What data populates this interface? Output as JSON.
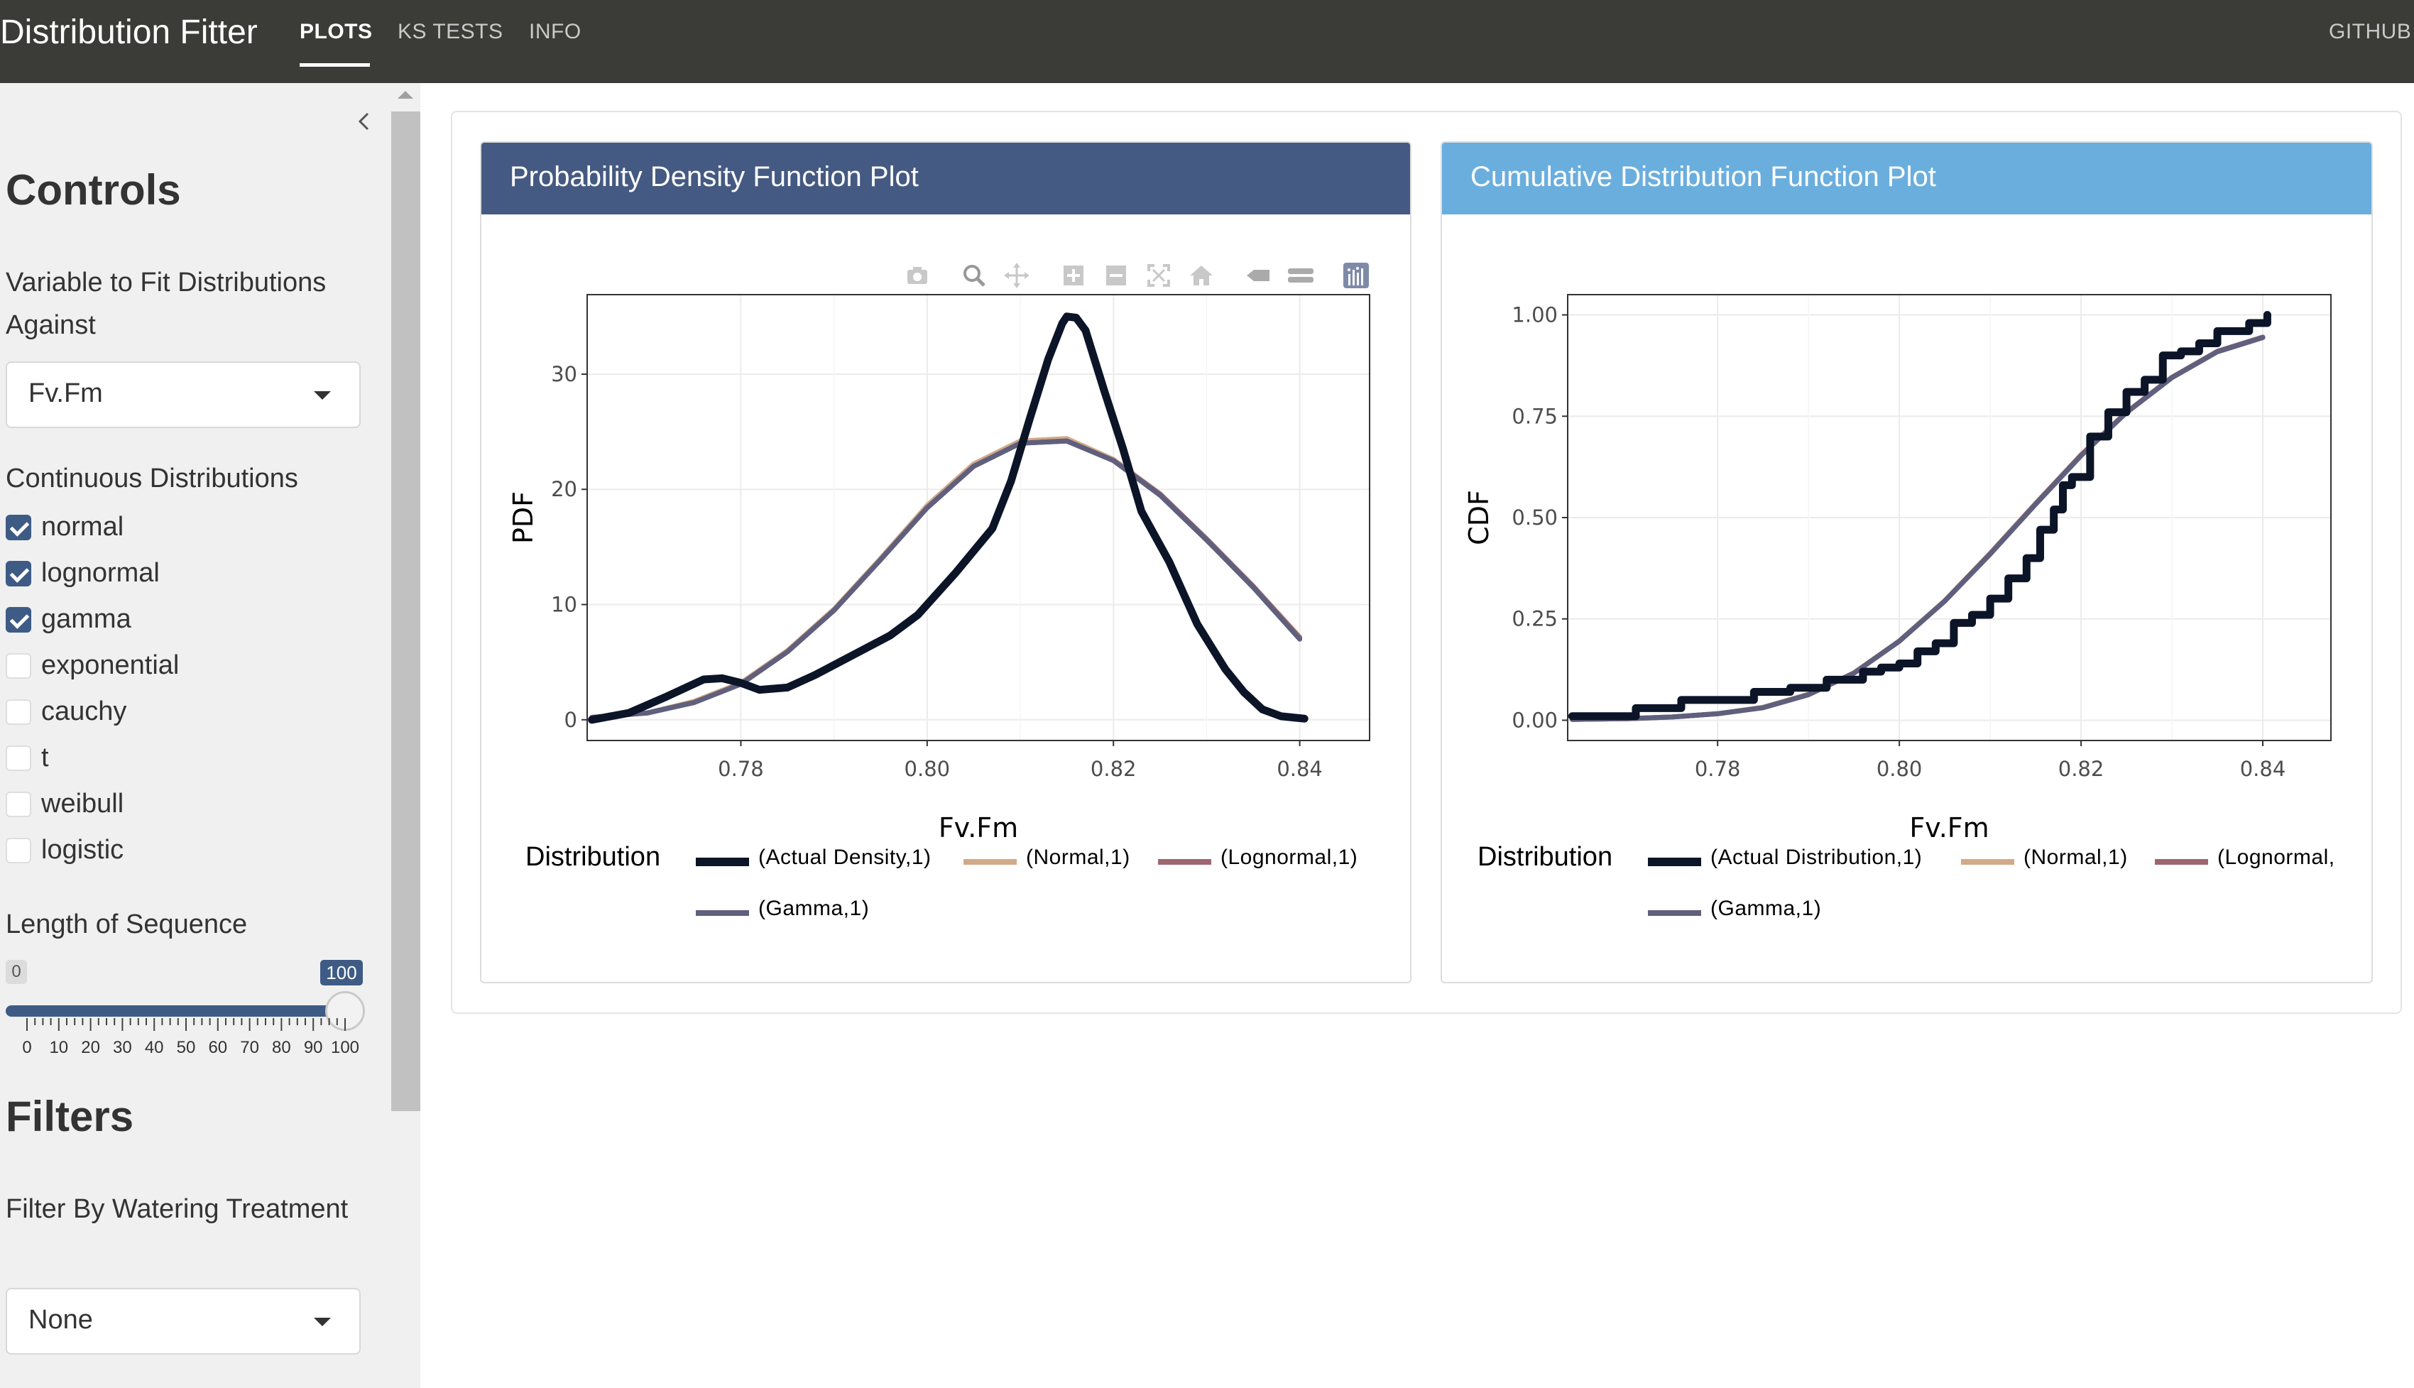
{
  "navbar": {
    "brand": "Distribution Fitter",
    "tabs": [
      {
        "label": "PLOTS"
      },
      {
        "label": "KS TESTS"
      },
      {
        "label": "INFO"
      }
    ],
    "right_link": "GITHUB"
  },
  "sidebar": {
    "controls_heading": "Controls",
    "variable_label": "Variable to Fit Distributions Against",
    "variable_value": "Fv.Fm",
    "distributions_label": "Continuous Distributions",
    "distributions": [
      {
        "label": "normal",
        "checked": true
      },
      {
        "label": "lognormal",
        "checked": true
      },
      {
        "label": "gamma",
        "checked": true
      },
      {
        "label": "exponential",
        "checked": false
      },
      {
        "label": "cauchy",
        "checked": false
      },
      {
        "label": "t",
        "checked": false
      },
      {
        "label": "weibull",
        "checked": false
      },
      {
        "label": "logistic",
        "checked": false
      }
    ],
    "sequence_label": "Length of Sequence",
    "slider": {
      "min_label": "0",
      "max_label": "100",
      "value_fraction": 1.0,
      "tick_labels": [
        "0",
        "10",
        "20",
        "30",
        "40",
        "50",
        "60",
        "70",
        "80",
        "90",
        "100"
      ]
    },
    "filters_heading": "Filters",
    "filter_label": "Filter By Watering Treatment",
    "filter_value": "None"
  },
  "colors": {
    "pdf_header": "#455a82",
    "cdf_header": "#6aaede",
    "actual": "#0c1428",
    "normal": "#d2aa88",
    "lognormal": "#9e6670",
    "gamma": "#5f5f7e"
  },
  "pdf_panel": {
    "title": "Probability Density Function Plot",
    "legend_title": "Distribution",
    "legend": [
      "(Actual Density,1)",
      "(Normal,1)",
      "(Lognormal,1)",
      "(Gamma,1)"
    ],
    "modebar_icons": [
      "camera-icon",
      "zoom-icon",
      "pan-icon",
      "zoom-in-icon",
      "zoom-out-icon",
      "autoscale-icon",
      "reset-axes-icon",
      "hover-closest-icon",
      "hover-compare-icon",
      "plotly-logo-icon"
    ]
  },
  "cdf_panel": {
    "title": "Cumulative Distribution Function Plot",
    "legend_title": "Distribution",
    "legend": [
      "(Actual Distribution,1)",
      "(Normal,1)",
      "(Lognormal,",
      "(Gamma,1)"
    ]
  },
  "chart_data": [
    {
      "type": "line",
      "title": "Probability Density Function Plot",
      "xlabel": "Fv.Fm",
      "ylabel": "PDF",
      "xlim": [
        0.7635,
        0.8475
      ],
      "ylim": [
        -1.8,
        36.9
      ],
      "xticks": [
        0.78,
        0.8,
        0.82,
        0.84
      ],
      "xtick_labels": [
        "0.78",
        "0.80",
        "0.82",
        "0.84"
      ],
      "yticks": [
        0,
        10,
        20,
        30
      ],
      "ytick_labels": [
        "0",
        "10",
        "20",
        "30"
      ],
      "series": [
        {
          "name": "(Actual Density,1)",
          "color_key": "actual",
          "x": [
            0.764,
            0.768,
            0.772,
            0.776,
            0.778,
            0.78,
            0.782,
            0.785,
            0.788,
            0.792,
            0.796,
            0.799,
            0.803,
            0.807,
            0.809,
            0.811,
            0.813,
            0.8145,
            0.815,
            0.816,
            0.817,
            0.819,
            0.821,
            0.823,
            0.826,
            0.829,
            0.832,
            0.834,
            0.836,
            0.838,
            0.8405
          ],
          "y": [
            0,
            0.6,
            2.0,
            3.5,
            3.6,
            3.2,
            2.6,
            2.8,
            3.9,
            5.6,
            7.3,
            9.1,
            12.7,
            16.6,
            20.7,
            26.1,
            31.3,
            34.4,
            35.0,
            34.9,
            33.8,
            28.6,
            23.6,
            18.1,
            13.7,
            8.3,
            4.4,
            2.4,
            0.9,
            0.3,
            0.1
          ]
        },
        {
          "name": "(Normal,1)",
          "color_key": "normal",
          "x": [
            0.764,
            0.77,
            0.775,
            0.78,
            0.785,
            0.79,
            0.795,
            0.8,
            0.805,
            0.81,
            0.815,
            0.82,
            0.825,
            0.83,
            0.835,
            0.84
          ],
          "y": [
            0.2,
            0.6,
            1.6,
            3.2,
            6.0,
            9.6,
            14.0,
            18.6,
            22.2,
            24.2,
            24.4,
            22.6,
            19.6,
            15.6,
            11.6,
            7.2
          ]
        },
        {
          "name": "(Lognormal,1)",
          "color_key": "lognormal",
          "x": [
            0.764,
            0.77,
            0.775,
            0.78,
            0.785,
            0.79,
            0.795,
            0.8,
            0.805,
            0.81,
            0.815,
            0.82,
            0.825,
            0.83,
            0.835,
            0.84
          ],
          "y": [
            0.2,
            0.6,
            1.5,
            3.1,
            5.9,
            9.5,
            13.9,
            18.4,
            22.0,
            24.0,
            24.2,
            22.5,
            19.6,
            15.7,
            11.6,
            7.1
          ]
        },
        {
          "name": "(Gamma,1)",
          "color_key": "gamma",
          "x": [
            0.764,
            0.77,
            0.775,
            0.78,
            0.785,
            0.79,
            0.795,
            0.8,
            0.805,
            0.81,
            0.815,
            0.82,
            0.825,
            0.83,
            0.835,
            0.84
          ],
          "y": [
            0.2,
            0.6,
            1.5,
            3.1,
            5.9,
            9.5,
            13.9,
            18.4,
            22.0,
            24.0,
            24.2,
            22.5,
            19.5,
            15.6,
            11.5,
            7.0
          ]
        }
      ]
    },
    {
      "type": "line",
      "title": "Cumulative Distribution Function Plot",
      "xlabel": "Fv.Fm",
      "ylabel": "CDF",
      "xlim": [
        0.7635,
        0.8475
      ],
      "ylim": [
        -0.05,
        1.05
      ],
      "xticks": [
        0.78,
        0.8,
        0.82,
        0.84
      ],
      "xtick_labels": [
        "0.78",
        "0.80",
        "0.82",
        "0.84"
      ],
      "yticks": [
        0,
        0.25,
        0.5,
        0.75,
        1.0
      ],
      "ytick_labels": [
        "0.00",
        "0.25",
        "0.50",
        "0.75",
        "1.00"
      ],
      "series": [
        {
          "name": "(Actual Distribution,1)",
          "color_key": "actual",
          "x": [
            0.764,
            0.768,
            0.771,
            0.776,
            0.78,
            0.784,
            0.788,
            0.792,
            0.796,
            0.798,
            0.8,
            0.802,
            0.804,
            0.806,
            0.808,
            0.81,
            0.812,
            0.814,
            0.8155,
            0.817,
            0.818,
            0.819,
            0.821,
            0.823,
            0.825,
            0.827,
            0.829,
            0.831,
            0.833,
            0.835,
            0.8385,
            0.8405
          ],
          "y": [
            0.01,
            0.01,
            0.03,
            0.05,
            0.05,
            0.07,
            0.08,
            0.1,
            0.12,
            0.13,
            0.14,
            0.17,
            0.19,
            0.24,
            0.26,
            0.3,
            0.35,
            0.4,
            0.47,
            0.52,
            0.58,
            0.6,
            0.7,
            0.76,
            0.81,
            0.84,
            0.9,
            0.91,
            0.93,
            0.96,
            0.98,
            1.0
          ]
        },
        {
          "name": "(Normal,1)",
          "color_key": "normal",
          "x": [
            0.764,
            0.77,
            0.775,
            0.78,
            0.785,
            0.79,
            0.795,
            0.8,
            0.805,
            0.81,
            0.815,
            0.82,
            0.825,
            0.83,
            0.835,
            0.84
          ],
          "y": [
            0.002,
            0.004,
            0.008,
            0.016,
            0.032,
            0.064,
            0.117,
            0.196,
            0.295,
            0.412,
            0.535,
            0.655,
            0.76,
            0.846,
            0.91,
            0.945
          ]
        },
        {
          "name": "(Lognormal,1)",
          "color_key": "lognormal",
          "x": [
            0.764,
            0.77,
            0.775,
            0.78,
            0.785,
            0.79,
            0.795,
            0.8,
            0.805,
            0.81,
            0.815,
            0.82,
            0.825,
            0.83,
            0.835,
            0.84
          ],
          "y": [
            0.002,
            0.004,
            0.008,
            0.016,
            0.031,
            0.063,
            0.116,
            0.195,
            0.294,
            0.411,
            0.534,
            0.654,
            0.76,
            0.846,
            0.91,
            0.945
          ]
        },
        {
          "name": "(Gamma,1)",
          "color_key": "gamma",
          "x": [
            0.764,
            0.77,
            0.775,
            0.78,
            0.785,
            0.79,
            0.795,
            0.8,
            0.805,
            0.81,
            0.815,
            0.82,
            0.825,
            0.83,
            0.835,
            0.84
          ],
          "y": [
            0.002,
            0.004,
            0.008,
            0.016,
            0.031,
            0.063,
            0.116,
            0.195,
            0.294,
            0.41,
            0.533,
            0.653,
            0.759,
            0.845,
            0.909,
            0.944
          ]
        }
      ]
    }
  ]
}
